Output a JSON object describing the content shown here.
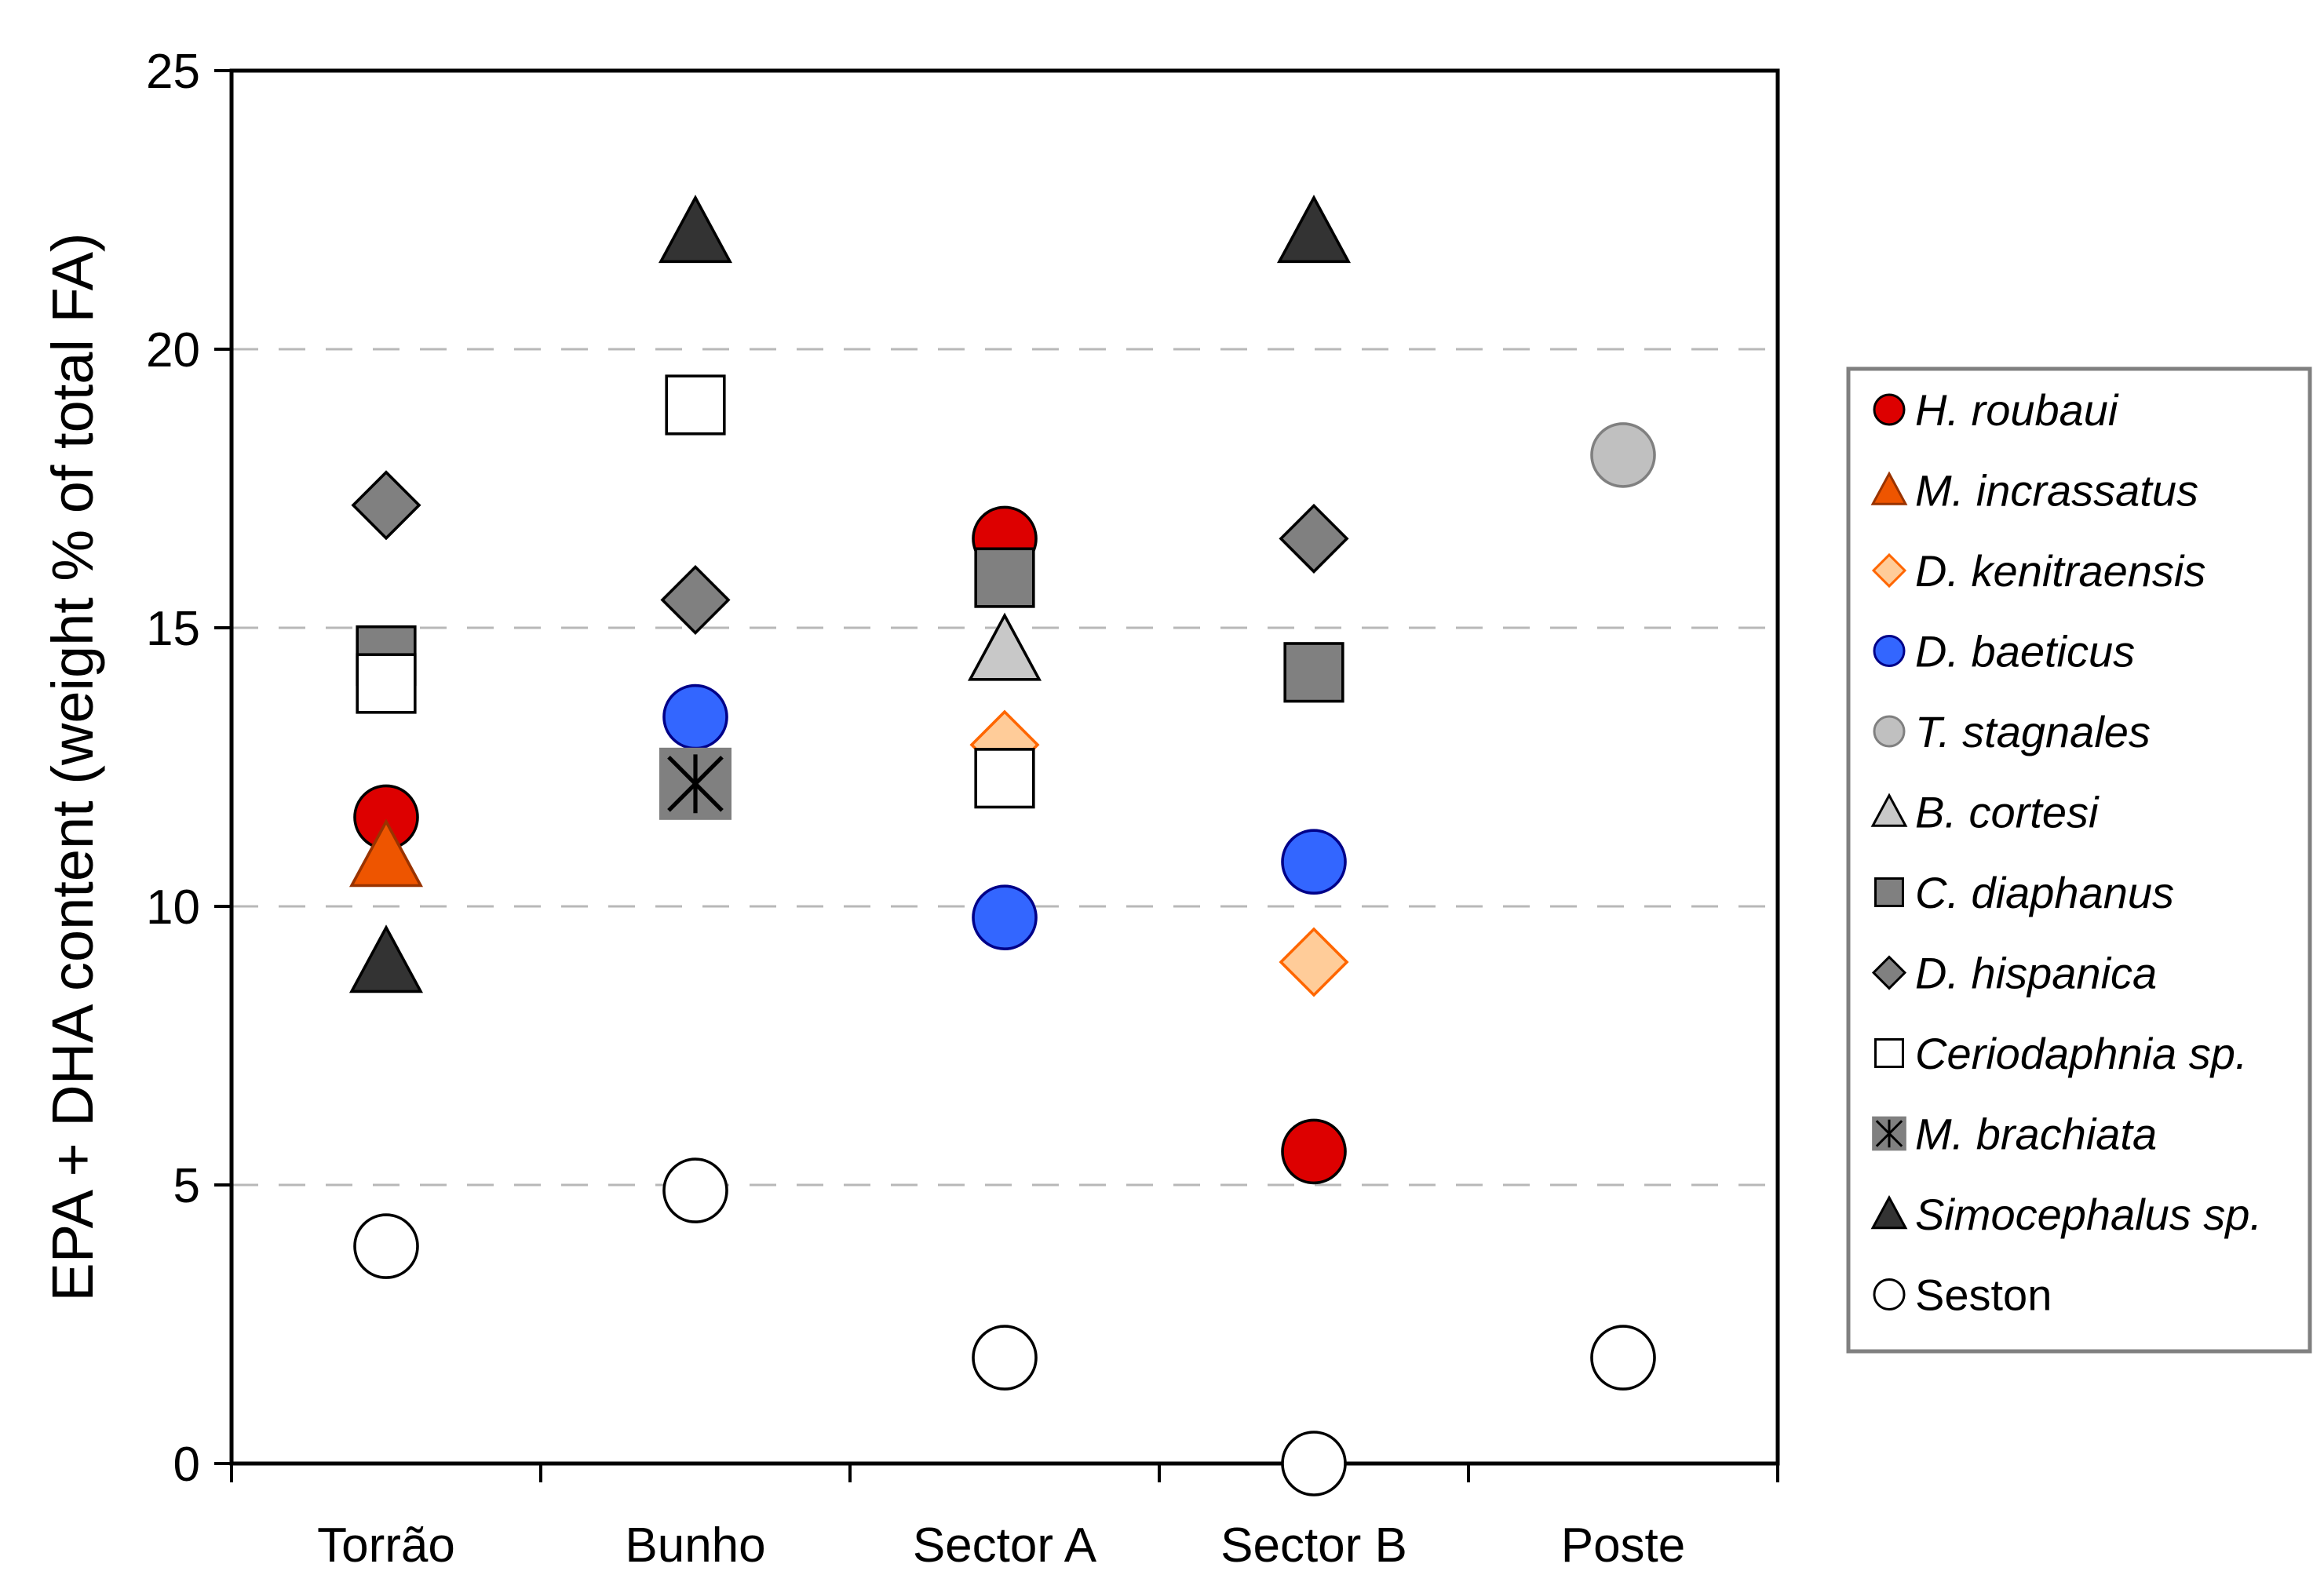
{
  "chart_data": {
    "type": "scatter",
    "ylabel": "EPA + DHA content (weight % of total FA)",
    "xlabel": "",
    "categories": [
      "Torrão",
      "Bunho",
      "Sector A",
      "Sector B",
      "Poste"
    ],
    "ylim": [
      0,
      25
    ],
    "yticks": [
      0,
      5,
      10,
      15,
      20,
      25
    ],
    "grid": "horizontal dashed",
    "legend_position": "right",
    "series": [
      {
        "name": "H. roubaui",
        "italic": true,
        "marker": "circle",
        "fill": "#dd0000",
        "stroke": "#000000",
        "values": [
          11.6,
          null,
          16.6,
          5.6,
          null
        ]
      },
      {
        "name": "M. incrassatus",
        "italic": true,
        "marker": "triangle",
        "fill": "#ee5500",
        "stroke": "#993300",
        "values": [
          10.9,
          null,
          null,
          null,
          null
        ]
      },
      {
        "name": "D. kenitraensis",
        "italic": true,
        "marker": "diamond",
        "fill": "#ffcc99",
        "stroke": "#ff6600",
        "values": [
          null,
          null,
          12.9,
          9.0,
          null
        ]
      },
      {
        "name": "D. baeticus",
        "italic": true,
        "marker": "circle",
        "fill": "#3366ff",
        "stroke": "#000088",
        "values": [
          null,
          13.4,
          9.8,
          10.8,
          null
        ]
      },
      {
        "name": "T. stagnales",
        "italic": true,
        "marker": "circle",
        "fill": "#c0c0c0",
        "stroke": "#808080",
        "values": [
          null,
          null,
          null,
          null,
          18.1
        ]
      },
      {
        "name": "B. cortesi",
        "italic": true,
        "marker": "triangle",
        "fill": "#c8c8c8",
        "stroke": "#000000",
        "values": [
          null,
          null,
          14.6,
          null,
          null
        ]
      },
      {
        "name": "C. diaphanus",
        "italic": true,
        "marker": "square",
        "fill": "#808080",
        "stroke": "#000000",
        "values": [
          14.5,
          null,
          15.9,
          14.2,
          null
        ]
      },
      {
        "name": "D. hispanica",
        "italic": true,
        "marker": "diamond",
        "fill": "#808080",
        "stroke": "#000000",
        "values": [
          17.2,
          15.5,
          null,
          16.6,
          null
        ]
      },
      {
        "name": "Ceriodaphnia sp.",
        "italic": true,
        "marker": "square",
        "fill": "#ffffff",
        "stroke": "#000000",
        "values": [
          14.0,
          19.0,
          12.3,
          null,
          null
        ]
      },
      {
        "name": "M. brachiata",
        "italic": true,
        "marker": "asterisk-square",
        "fill": "#808080",
        "stroke": "#000000",
        "values": [
          null,
          12.2,
          null,
          null,
          null
        ]
      },
      {
        "name": "Simocephalus sp.",
        "italic": true,
        "marker": "triangle",
        "fill": "#333333",
        "stroke": "#000000",
        "values": [
          9.0,
          22.1,
          null,
          22.1,
          null
        ]
      },
      {
        "name": "Seston",
        "italic": false,
        "marker": "circle",
        "fill": "#ffffff",
        "stroke": "#000000",
        "values": [
          3.9,
          4.9,
          1.9,
          0.0,
          1.9
        ]
      }
    ]
  }
}
